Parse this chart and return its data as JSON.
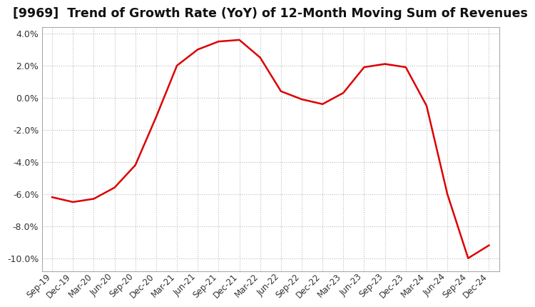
{
  "title": "[9969]  Trend of Growth Rate (YoY) of 12-Month Moving Sum of Revenues",
  "title_fontsize": 12.5,
  "line_color": "#dd0000",
  "background_color": "#ffffff",
  "grid_color": "#bbbbbb",
  "grid_style": ":",
  "ylim": [
    -0.108,
    0.044
  ],
  "yticks": [
    0.04,
    0.02,
    0.0,
    -0.02,
    -0.04,
    -0.06,
    -0.08,
    -0.1
  ],
  "x_labels": [
    "Sep-19",
    "Dec-19",
    "Mar-20",
    "Jun-20",
    "Sep-20",
    "Dec-20",
    "Mar-21",
    "Jun-21",
    "Sep-21",
    "Dec-21",
    "Mar-22",
    "Jun-22",
    "Sep-22",
    "Dec-22",
    "Mar-23",
    "Jun-23",
    "Sep-23",
    "Dec-23",
    "Mar-24",
    "Jun-24",
    "Sep-24",
    "Dec-24"
  ],
  "values": [
    -0.062,
    -0.065,
    -0.063,
    -0.056,
    -0.042,
    -0.012,
    0.02,
    0.03,
    0.035,
    0.036,
    0.025,
    0.004,
    -0.001,
    -0.004,
    0.003,
    0.019,
    0.021,
    0.019,
    -0.005,
    -0.06,
    -0.1,
    -0.092
  ]
}
